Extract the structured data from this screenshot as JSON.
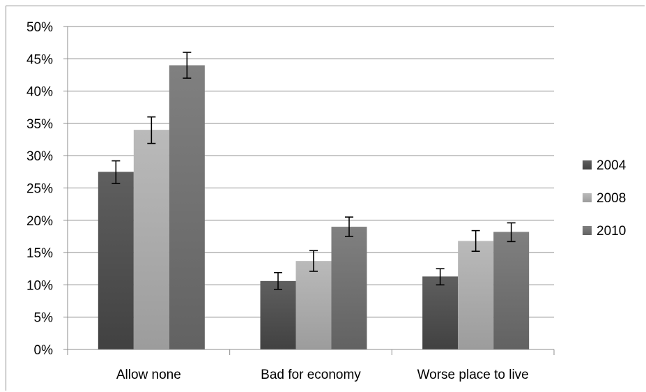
{
  "chart_data": {
    "type": "bar",
    "categories": [
      "Allow none",
      "Bad for economy",
      "Worse place to live"
    ],
    "series": [
      {
        "name": "2004",
        "values": [
          27.5,
          10.6,
          11.3
        ],
        "error_low": [
          25.7,
          9.3,
          10.0
        ],
        "error_high": [
          29.2,
          11.9,
          12.5
        ],
        "color": "#4d4d4d"
      },
      {
        "name": "2008",
        "values": [
          34.0,
          13.7,
          16.8
        ],
        "error_low": [
          31.9,
          12.1,
          15.2
        ],
        "error_high": [
          36.0,
          15.3,
          18.4
        ],
        "color": "#a8a8a8"
      },
      {
        "name": "2010",
        "values": [
          44.0,
          19.0,
          18.2
        ],
        "error_low": [
          42.0,
          17.5,
          16.7
        ],
        "error_high": [
          46.0,
          20.5,
          19.6
        ],
        "color": "#6e6e6e"
      }
    ],
    "y_ticks": [
      "0%",
      "5%",
      "10%",
      "15%",
      "20%",
      "25%",
      "30%",
      "35%",
      "40%",
      "45%",
      "50%"
    ],
    "ylim": [
      0,
      50
    ],
    "y_unit": "%",
    "grid": true,
    "legend_position": "right",
    "title": "",
    "xlabel": "",
    "ylabel": ""
  }
}
